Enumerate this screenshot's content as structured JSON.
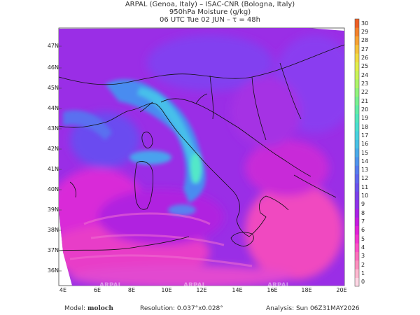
{
  "header": {
    "line1": "ARPAL (Genoa, Italy)  –  ISAC-CNR (Bologna, Italy)",
    "line2": "950hPa Moisture (g/kg)",
    "line3": "06 UTC Tue 02 JUN  –  τ = 48h"
  },
  "axes": {
    "lat_labels": [
      "47N",
      "46N",
      "45N",
      "44N",
      "43N",
      "42N",
      "41N",
      "40N",
      "39N",
      "38N",
      "37N",
      "36N"
    ],
    "lon_labels": [
      "4E",
      "6E",
      "8E",
      "10E",
      "12E",
      "14E",
      "16E",
      "18E",
      "20E"
    ]
  },
  "colorbar": {
    "labels": [
      "0",
      "1",
      "2",
      "3",
      "4",
      "5",
      "6",
      "7",
      "8",
      "9",
      "10",
      "11",
      "12",
      "13",
      "14",
      "15",
      "16",
      "17",
      "18",
      "19",
      "20",
      "21",
      "22",
      "23",
      "24",
      "25",
      "26",
      "27",
      "28",
      "29",
      "30"
    ],
    "colors": [
      "#ffd6e4",
      "#ffb8d0",
      "#ff90bf",
      "#ff6fbd",
      "#ff50c6",
      "#f434cf",
      "#e220d8",
      "#c61ae0",
      "#aa20e6",
      "#9030ea",
      "#7a40ec",
      "#6a52ee",
      "#5f66f0",
      "#567cf0",
      "#4f94ee",
      "#4aabea",
      "#48c1e6",
      "#48d3df",
      "#4ae0d0",
      "#52e8bd",
      "#62eea8",
      "#78f292",
      "#92f57c",
      "#aef668",
      "#caf458",
      "#e2ee4c",
      "#f2dc42",
      "#f8c23a",
      "#f9a232",
      "#f5812a",
      "#ee5e24"
    ]
  },
  "footer": {
    "model_prefix": "Model:",
    "model_name": "moloch",
    "resolution": "Resolution: 0.037°x0.028°",
    "analysis": "Analysis: Sun 06Z31MAY2026"
  },
  "watermarks": [
    "ARPAL",
    "ARPAL",
    "ARPAL"
  ],
  "colors": {
    "field_base": "#9a2ee6",
    "coast_line": "#111111"
  }
}
